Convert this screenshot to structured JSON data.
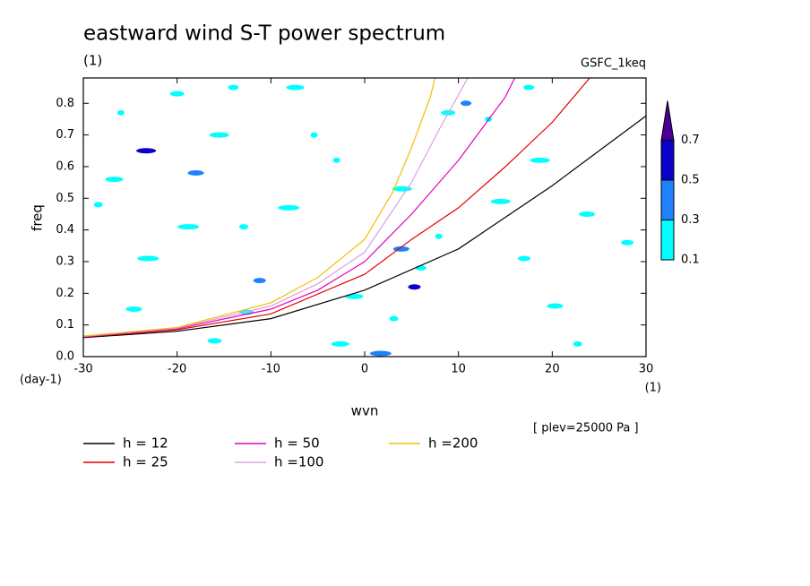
{
  "chart_data": {
    "type": "contour",
    "title": "eastward wind S-T power spectrum",
    "subtitle": "(1)",
    "source": "GSFC_1keq",
    "ylabel": "freq",
    "xlabel": "wvn",
    "yunit": "(day-1)",
    "xunit": "(1)",
    "note": "[ plev=25000 Pa ]",
    "xlim": [
      -30,
      30
    ],
    "ylim": [
      0,
      0.88
    ],
    "xticks": [
      -30,
      -20,
      -10,
      0,
      10,
      20,
      30
    ],
    "yticks": [
      {
        "value": 0,
        "label": "0.0"
      },
      0.1,
      0.2,
      0.3,
      0.4,
      0.5,
      0.6,
      0.7,
      0.8
    ],
    "levels": [
      0.1,
      0.3,
      0.5,
      0.7
    ],
    "level_colors": [
      "#00ffff",
      "#1e82ff",
      "#0a00c8",
      "#4a0096"
    ],
    "contours": [
      {
        "x": -26,
        "y": 0.77,
        "level": 0.1
      },
      {
        "x": -23.3,
        "y": 0.65,
        "level": 0.5
      },
      {
        "x": -18,
        "y": 0.58,
        "level": 0.3
      },
      {
        "x": -11.2,
        "y": 0.24,
        "level": 0.3
      },
      {
        "x": -12.9,
        "y": 0.41,
        "level": 0.1
      },
      {
        "x": -8.1,
        "y": 0.47,
        "level": 0.1
      },
      {
        "x": -7.4,
        "y": 0.85,
        "level": 0.1
      },
      {
        "x": -20,
        "y": 0.83,
        "level": 0.1
      },
      {
        "x": -14,
        "y": 0.85,
        "level": 0.1
      },
      {
        "x": -5.4,
        "y": 0.7,
        "level": 0.1
      },
      {
        "x": 4,
        "y": 0.53,
        "level": 0.1
      },
      {
        "x": 3.9,
        "y": 0.34,
        "level": 0.3
      },
      {
        "x": 5.3,
        "y": 0.22,
        "level": 0.5
      },
      {
        "x": 3.1,
        "y": 0.12,
        "level": 0.1
      },
      {
        "x": 1.7,
        "y": 0.01,
        "level": 0.3
      },
      {
        "x": -2.6,
        "y": 0.04,
        "level": 0.1
      },
      {
        "x": 8.9,
        "y": 0.77,
        "level": 0.1
      },
      {
        "x": 10.8,
        "y": 0.8,
        "level": 0.3
      },
      {
        "x": 13.2,
        "y": 0.75,
        "level": 0.1
      },
      {
        "x": 18.7,
        "y": 0.62,
        "level": 0.1
      },
      {
        "x": 23.7,
        "y": 0.45,
        "level": 0.1
      },
      {
        "x": 17,
        "y": 0.31,
        "level": 0.1
      },
      {
        "x": 22.7,
        "y": 0.04,
        "level": 0.1
      },
      {
        "x": -18.8,
        "y": 0.41,
        "level": 0.1
      },
      {
        "x": -26.7,
        "y": 0.56,
        "level": 0.1
      },
      {
        "x": -16,
        "y": 0.05,
        "level": 0.1
      },
      {
        "x": 6,
        "y": 0.28,
        "level": 0.1
      },
      {
        "x": 7.9,
        "y": 0.38,
        "level": 0.1
      },
      {
        "x": 14.5,
        "y": 0.49,
        "level": 0.1
      },
      {
        "x": 20.3,
        "y": 0.16,
        "level": 0.1
      },
      {
        "x": 28,
        "y": 0.36,
        "level": 0.1
      },
      {
        "x": -28.4,
        "y": 0.48,
        "level": 0.1
      },
      {
        "x": -23.1,
        "y": 0.31,
        "level": 0.1
      },
      {
        "x": -1.1,
        "y": 0.19,
        "level": 0.1
      },
      {
        "x": -12.6,
        "y": 0.14,
        "level": 0.1
      },
      {
        "x": 17.5,
        "y": 0.85,
        "level": 0.1
      },
      {
        "x": -3,
        "y": 0.62,
        "level": 0.1
      },
      {
        "x": -15.5,
        "y": 0.7,
        "level": 0.1
      },
      {
        "x": -24.6,
        "y": 0.15,
        "level": 0.1
      }
    ],
    "series": [
      {
        "name": "h = 12",
        "color": "#000000",
        "x": [
          -30,
          -20,
          -10,
          0,
          10,
          20,
          30
        ],
        "values": [
          0.06,
          0.08,
          0.12,
          0.21,
          0.34,
          0.54,
          0.76
        ]
      },
      {
        "name": "h = 25",
        "color": "#e00000",
        "x": [
          -30,
          -20,
          -10,
          0,
          5,
          10,
          15,
          20,
          24
        ],
        "values": [
          0.062,
          0.085,
          0.135,
          0.26,
          0.37,
          0.47,
          0.6,
          0.74,
          0.88
        ]
      },
      {
        "name": "h = 50",
        "color": "#e000c0",
        "x": [
          -30,
          -20,
          -10,
          -5,
          0,
          5,
          10,
          15,
          16
        ],
        "values": [
          0.063,
          0.088,
          0.15,
          0.21,
          0.3,
          0.45,
          0.62,
          0.82,
          0.88
        ]
      },
      {
        "name": "h =100",
        "color": "#d8a0e0",
        "x": [
          -30,
          -20,
          -10,
          -5,
          0,
          5,
          8,
          11
        ],
        "values": [
          0.064,
          0.09,
          0.16,
          0.23,
          0.33,
          0.55,
          0.72,
          0.88
        ]
      },
      {
        "name": "h =200",
        "color": "#f0c000",
        "x": [
          -30,
          -20,
          -10,
          -5,
          0,
          3,
          5,
          7,
          7.5
        ],
        "values": [
          0.065,
          0.092,
          0.17,
          0.25,
          0.37,
          0.52,
          0.66,
          0.82,
          0.88
        ]
      }
    ]
  }
}
